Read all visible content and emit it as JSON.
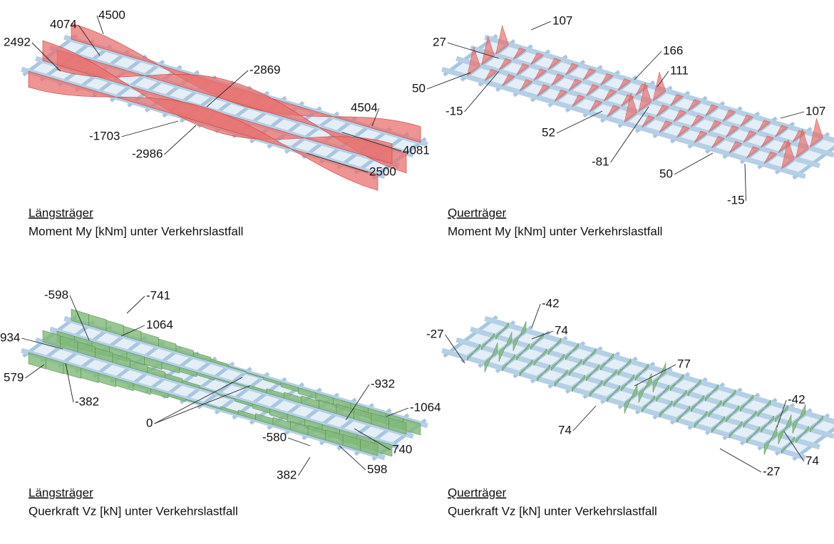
{
  "panels": [
    {
      "heading": "Längsträger",
      "caption": "Moment My [kNm] unter Verkehrslastfall",
      "labels": [
        4500,
        4074,
        2492,
        -2869,
        4504,
        -1703,
        4081,
        -2986,
        2500
      ]
    },
    {
      "heading": "Querträger",
      "caption": "Moment My [kNm] unter Verkehrslastfall",
      "labels": [
        107,
        27,
        166,
        111,
        50,
        -15,
        107,
        52,
        -81,
        50,
        -15
      ]
    },
    {
      "heading": "Längsträger",
      "caption": "Querkraft Vz [kN] unter Verkehrslastfall",
      "labels": [
        -598,
        -741,
        1064,
        934,
        579,
        -382,
        0,
        -932,
        -1064,
        740,
        -580,
        598,
        382
      ]
    },
    {
      "heading": "Querträger",
      "caption": "Querkraft Vz [kN] unter Verkehrslastfall",
      "labels": [
        -27,
        -42,
        74,
        77,
        74,
        -42,
        74,
        -27
      ]
    }
  ]
}
